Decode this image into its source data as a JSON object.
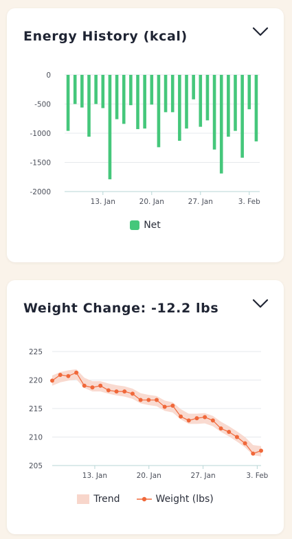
{
  "energy_card": {
    "title": "Energy History (kcal)",
    "legend": {
      "net_label": "Net"
    }
  },
  "weight_card": {
    "title": "Weight Change: -12.2 lbs",
    "legend": {
      "trend_label": "Trend",
      "weight_label": "Weight (lbs)"
    }
  },
  "icons": {
    "collapse": "chevron-down-icon"
  },
  "colors": {
    "net": "#45c77b",
    "weight": "#f0683a",
    "trend": "#f8d6cb",
    "axis": "#b7d6d6",
    "grid": "#e6e8ec"
  },
  "chart_data": [
    {
      "type": "bar",
      "ylim": [
        -2000,
        0
      ],
      "yticks": [
        0,
        -500,
        -1000,
        -1500,
        -2000
      ],
      "xtick_labels": [
        "13. Jan",
        "20. Jan",
        "27. Jan",
        "3. Feb"
      ],
      "grid": true,
      "legend_position": "bottom",
      "series": [
        {
          "name": "Net",
          "values": [
            -960,
            -500,
            -560,
            -1060,
            -500,
            -570,
            -1790,
            -760,
            -840,
            -520,
            -930,
            -920,
            -510,
            -1240,
            -640,
            -640,
            -1130,
            -920,
            -420,
            -890,
            -780,
            -1280,
            -1690,
            -1060,
            -960,
            -1420,
            -590,
            -1140
          ]
        }
      ]
    },
    {
      "type": "line",
      "ylim": [
        205,
        225
      ],
      "yticks": [
        205,
        210,
        215,
        220,
        225
      ],
      "xtick_labels": [
        "13. Jan",
        "20. Jan",
        "27. Jan",
        "3. Feb"
      ],
      "grid": true,
      "legend_position": "bottom",
      "series": [
        {
          "name": "Weight (lbs)",
          "values": [
            219.9,
            220.9,
            220.7,
            221.3,
            219.0,
            218.7,
            219.0,
            218.2,
            218.0,
            218.0,
            217.6,
            216.5,
            216.5,
            216.5,
            215.3,
            215.5,
            213.6,
            212.9,
            213.3,
            213.5,
            212.9,
            211.5,
            210.9,
            210.0,
            208.9,
            207.1,
            207.6
          ]
        },
        {
          "name": "Trend",
          "values": [
            219.9,
            220.5,
            220.8,
            221.0,
            219.5,
            218.9,
            218.9,
            218.5,
            218.2,
            218.0,
            217.6,
            216.8,
            216.5,
            216.3,
            215.5,
            215.2,
            214.0,
            213.2,
            213.2,
            213.3,
            212.8,
            211.8,
            211.0,
            210.1,
            209.1,
            207.7,
            207.5
          ]
        }
      ]
    }
  ]
}
